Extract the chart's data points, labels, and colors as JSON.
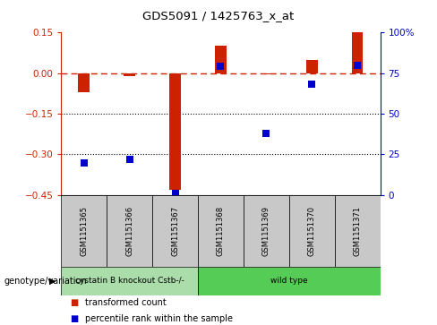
{
  "title": "GDS5091 / 1425763_x_at",
  "samples": [
    "GSM1151365",
    "GSM1151366",
    "GSM1151367",
    "GSM1151368",
    "GSM1151369",
    "GSM1151370",
    "GSM1151371"
  ],
  "red_values": [
    -0.07,
    -0.01,
    -0.43,
    0.1,
    -0.005,
    0.05,
    0.15
  ],
  "blue_values": [
    20,
    22,
    1,
    79,
    38,
    68,
    80
  ],
  "ylim_left": [
    -0.45,
    0.15
  ],
  "ylim_right": [
    0,
    100
  ],
  "yticks_left": [
    0.15,
    0.0,
    -0.15,
    -0.3,
    -0.45
  ],
  "yticks_right": [
    100,
    75,
    50,
    25,
    0
  ],
  "dotted_lines": [
    -0.15,
    -0.3
  ],
  "bar_color": "#cc2200",
  "point_color": "#0000cc",
  "bar_width": 0.25,
  "point_size": 30,
  "groups": [
    {
      "label": "cystatin B knockout Cstb-/-",
      "indices": [
        0,
        1,
        2
      ],
      "color": "#aaddaa"
    },
    {
      "label": "wild type",
      "indices": [
        3,
        4,
        5,
        6
      ],
      "color": "#55cc55"
    }
  ],
  "group_row_label": "genotype/variation",
  "legend_red": "transformed count",
  "legend_blue": "percentile rank within the sample",
  "bg_color": "#ffffff",
  "tick_label_color_left": "#cc2200",
  "tick_label_color_right": "#0000cc",
  "gray_color": "#c8c8c8"
}
